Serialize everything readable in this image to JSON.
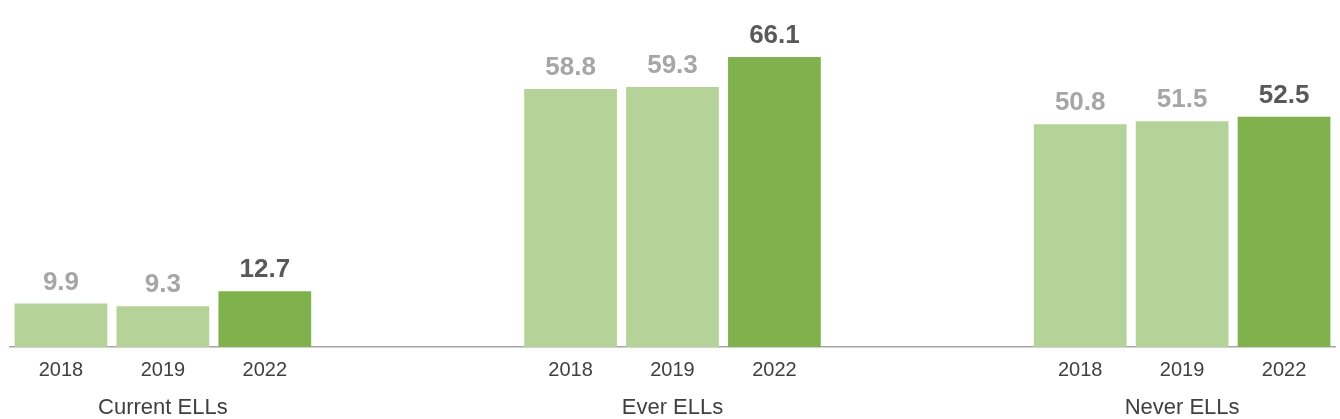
{
  "chart_data": {
    "type": "bar",
    "categories": [
      "2018",
      "2019",
      "2022",
      null,
      null,
      "2018",
      "2019",
      "2022",
      null,
      null,
      "2018",
      "2019",
      "2022"
    ],
    "values": [
      9.9,
      9.3,
      12.7,
      null,
      null,
      58.8,
      59.3,
      66.1,
      null,
      null,
      50.8,
      51.5,
      52.5
    ],
    "colors": [
      "#b5d398",
      "#b5d398",
      "#7fb24c",
      null,
      null,
      "#b5d398",
      "#b5d398",
      "#7fb24c",
      null,
      null,
      "#b5d398",
      "#b5d398",
      "#7fb24c"
    ],
    "data_labels": true,
    "tick_labels": "x",
    "grid": false,
    "legend": false,
    "annotations": [
      "Current ELLs",
      "Ever ELLs",
      "Never ELLs"
    ]
  }
}
